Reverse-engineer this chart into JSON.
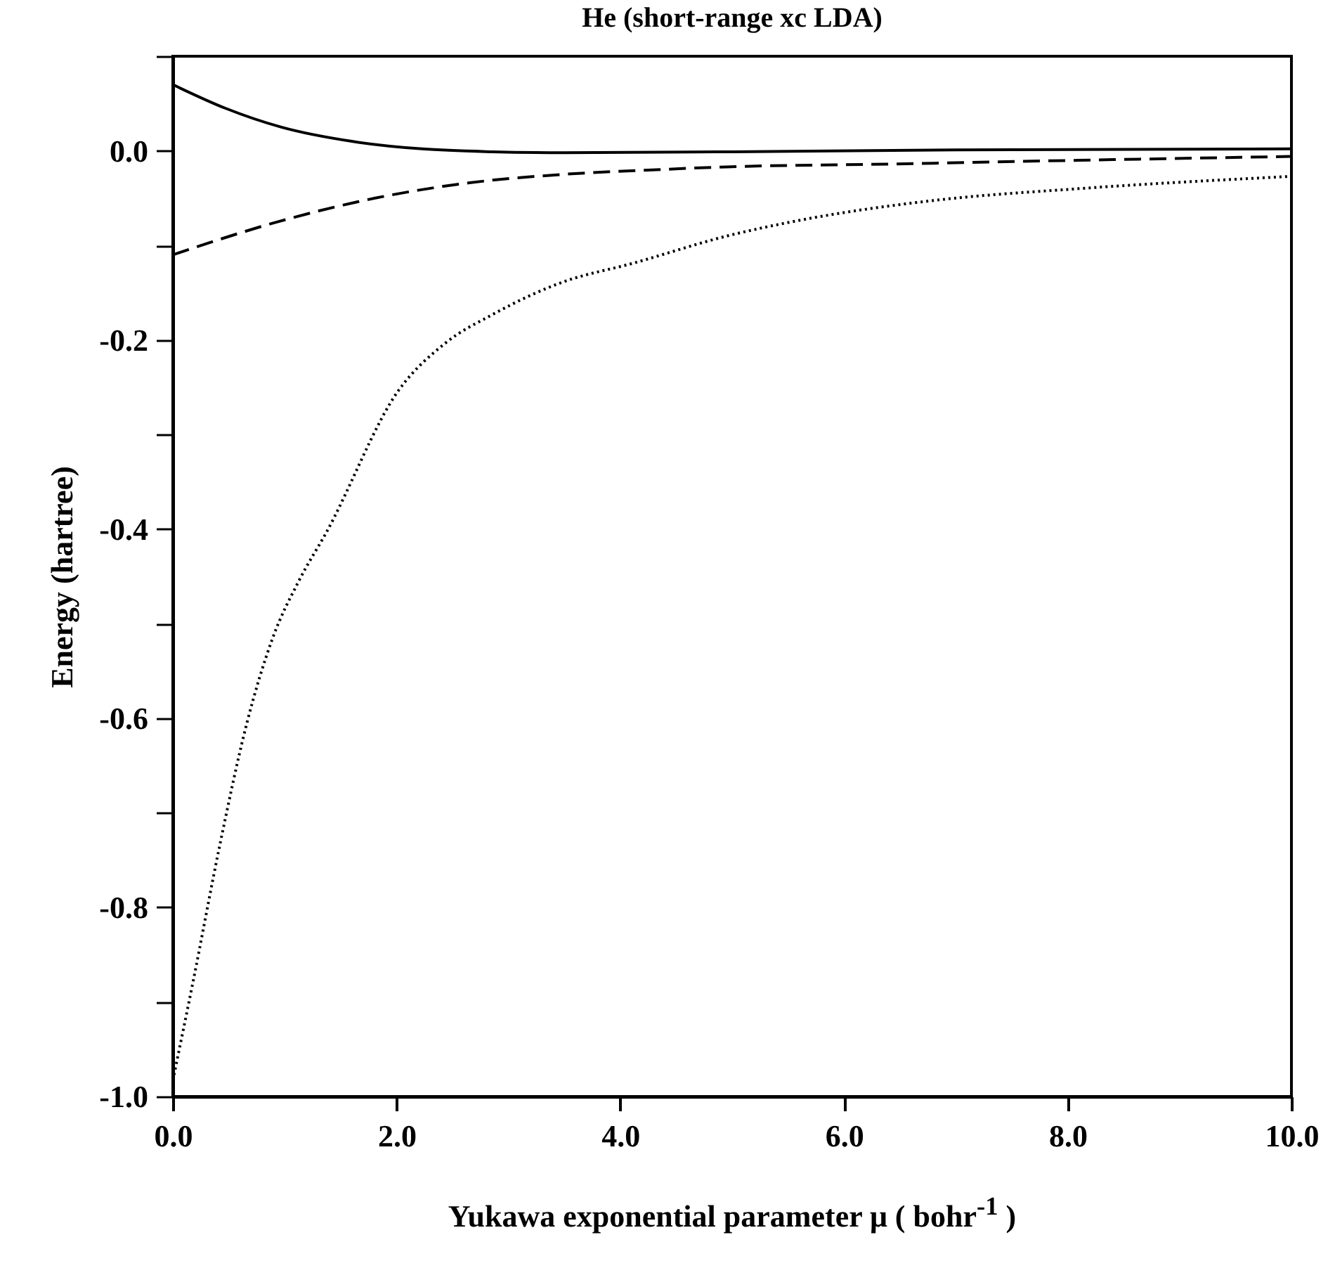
{
  "chart_data": {
    "type": "line",
    "title": "He (short-range xc LDA)",
    "xlabel": "Yukawa exponential parameter μ ( bohr$^{-1}$ )",
    "ylabel": "Energy (hartree)",
    "xlim": [
      0,
      10
    ],
    "ylim": [
      -1.0,
      0.1
    ],
    "xticks": [
      {
        "value": 0,
        "label": "0.0"
      },
      {
        "value": 2,
        "label": "2.0"
      },
      {
        "value": 4,
        "label": "4.0"
      },
      {
        "value": 6,
        "label": "6.0"
      },
      {
        "value": 8,
        "label": "8.0"
      },
      {
        "value": 10,
        "label": "10.0"
      }
    ],
    "yticks": [
      {
        "value": 0.1,
        "label": null
      },
      {
        "value": 0,
        "label": "0.0"
      },
      {
        "value": -0.1,
        "label": null
      },
      {
        "value": -0.2,
        "label": "-0.2"
      },
      {
        "value": -0.3,
        "label": null
      },
      {
        "value": -0.4,
        "label": "-0.4"
      },
      {
        "value": -0.5,
        "label": null
      },
      {
        "value": -0.6,
        "label": "-0.6"
      },
      {
        "value": -0.7,
        "label": null
      },
      {
        "value": -0.8,
        "label": "-0.8"
      },
      {
        "value": -0.9,
        "label": null
      },
      {
        "value": -1.0,
        "label": "-1.0"
      }
    ],
    "grid": false,
    "series": [
      {
        "color": "#000000",
        "line_style": "solid",
        "x": [
          0,
          0.47,
          0.97,
          1.6,
          2.23,
          2.86,
          3.5,
          5,
          7,
          10
        ],
        "values": [
          0.07,
          0.045,
          0.025,
          0.01,
          0.002,
          -0.001,
          -0.002,
          -0.001,
          0.001,
          0.002
        ]
      },
      {
        "color": "#000000",
        "line_style": "dashed",
        "x": [
          0,
          0.97,
          1.81,
          2.64,
          3.48,
          4.32,
          4.95,
          6.42,
          8.1,
          10
        ],
        "values": [
          -0.11,
          -0.074,
          -0.05,
          -0.034,
          -0.025,
          -0.02,
          -0.017,
          -0.014,
          -0.01,
          -0.006
        ]
      },
      {
        "color": "#000000",
        "line_style": "dotted",
        "x": [
          0,
          0.18,
          0.42,
          0.66,
          0.89,
          1.13,
          1.37,
          2.02,
          2.44,
          2.86,
          3.48,
          4.11,
          4.99,
          5.58,
          6.84,
          8.1,
          10
        ],
        "values": [
          -0.983,
          -0.879,
          -0.734,
          -0.606,
          -0.516,
          -0.454,
          -0.404,
          -0.253,
          -0.203,
          -0.173,
          -0.139,
          -0.119,
          -0.089,
          -0.074,
          -0.052,
          -0.04,
          -0.027
        ]
      }
    ]
  }
}
